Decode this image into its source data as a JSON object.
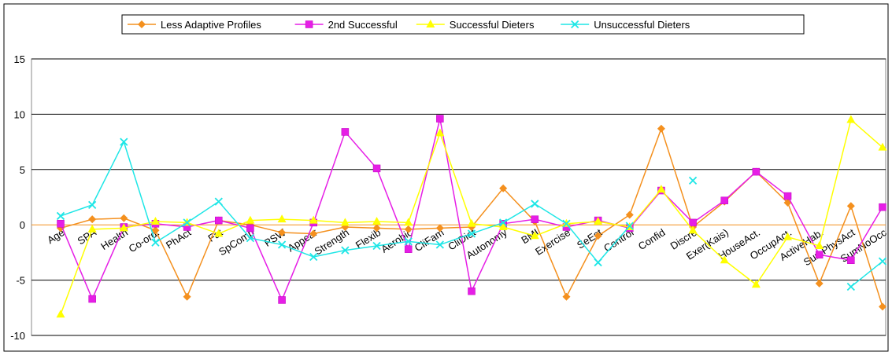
{
  "chart_data": {
    "type": "line",
    "categories": [
      "Age",
      "SPA",
      "Health",
      "Co-ord.",
      "PhAct",
      "Fat",
      "SpComp",
      "PSW",
      "Appear",
      "Strength",
      "Flexib",
      "Aerobic",
      "CliFam",
      "CliDiet",
      "Autonomy",
      "BMI",
      "Exercise",
      "SeEst",
      "Control",
      "Confid",
      "Discre",
      "Exer(Kais)",
      "HouseAct.",
      "OccupAct.",
      "ActiveHab.",
      "SumPhysAct",
      "SumNoOcc"
    ],
    "series": [
      {
        "name": "Less Adaptive Profiles",
        "color": "#f4901e",
        "marker": "diamond",
        "values": [
          -0.3,
          0.5,
          0.6,
          -0.5,
          -6.5,
          0.4,
          0,
          -0.7,
          -0.8,
          -0.2,
          -0.3,
          -0.4,
          -0.3,
          -0.2,
          3.3,
          0.3,
          -6.5,
          -1.0,
          0.9,
          8.7,
          -0.2,
          2.1,
          4.8,
          2.0,
          -5.3,
          1.7,
          -7.4
        ]
      },
      {
        "name": "2nd Successful",
        "color": "#e61ee6",
        "marker": "square",
        "values": [
          0.1,
          -6.7,
          -0.2,
          0.1,
          -0.2,
          0.4,
          -0.3,
          -6.8,
          0.2,
          8.4,
          5.1,
          -2.2,
          9.6,
          -6.0,
          0.1,
          0.5,
          -0.2,
          0.4,
          -0.3,
          3.1,
          0.2,
          2.2,
          4.8,
          2.6,
          -2.7,
          -3.2,
          1.6
        ]
      },
      {
        "name": "Successful Dieters",
        "color": "#ffff00",
        "marker": "triangle",
        "values": [
          -8.1,
          -0.4,
          -0.3,
          0.3,
          0.2,
          -0.8,
          0.4,
          0.5,
          0.4,
          0.2,
          0.3,
          0.2,
          8.3,
          0.1,
          -0.2,
          -1.0,
          0.1,
          0.3,
          -0.2,
          3.2,
          -0.5,
          -3.2,
          -5.4,
          -1.1,
          -1.9,
          9.5,
          7.0
        ]
      },
      {
        "name": "Unsuccessful Dieters",
        "color": "#1ee6e6",
        "marker": "x",
        "values": [
          0.8,
          1.8,
          7.5,
          -1.6,
          0.2,
          2.1,
          -1.2,
          -1.8,
          -2.9,
          -2.3,
          -1.9,
          -1.5,
          -1.8,
          -0.8,
          0.2,
          1.9,
          0.1,
          -3.4,
          -0.1,
          null,
          4.0,
          null,
          null,
          null,
          null,
          -5.6,
          -3.3
        ]
      }
    ],
    "ylim": [
      -10,
      15
    ],
    "yticks": [
      -10,
      -5,
      0,
      5,
      10,
      15
    ],
    "grid": true,
    "legend": "top"
  }
}
